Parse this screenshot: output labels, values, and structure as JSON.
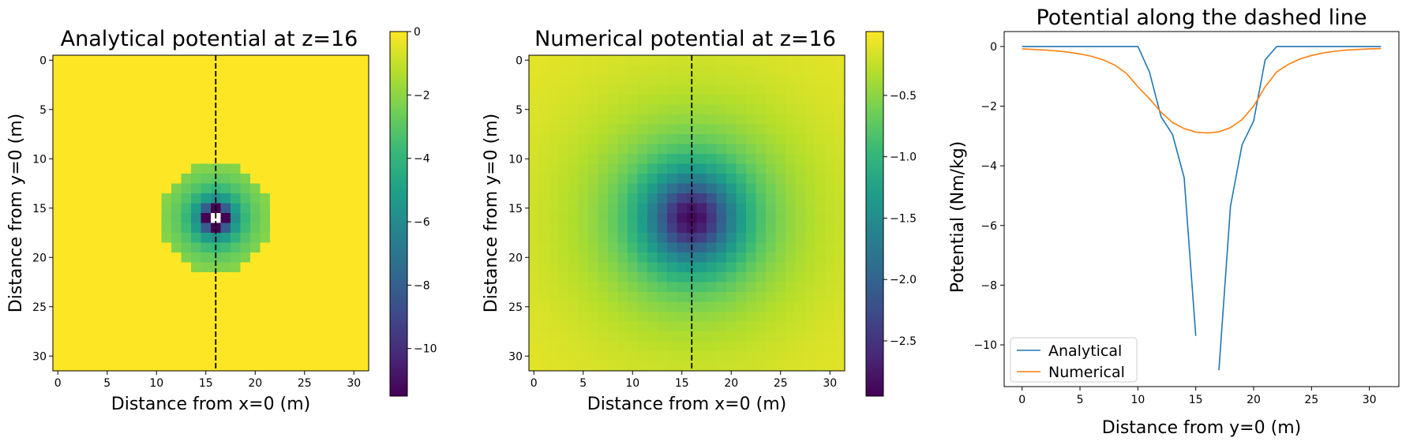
{
  "colors": {
    "analytical": "#1f77b4",
    "numerical": "#ff7f0e",
    "viridis": [
      "#440154",
      "#482878",
      "#3e4989",
      "#31688e",
      "#26828e",
      "#1f9e89",
      "#35b779",
      "#6ece58",
      "#b5de2b",
      "#fde725"
    ],
    "dashed_line": "#000000"
  },
  "chart_data": [
    {
      "type": "heatmap",
      "title": "Analytical potential at z=16",
      "xlabel": "Distance from x=0 (m)",
      "ylabel": "Distance from y=0 (m)",
      "grid_size": 32,
      "x_ticks": [
        "0",
        "5",
        "10",
        "15",
        "20",
        "25",
        "30"
      ],
      "y_ticks": [
        "0",
        "5",
        "10",
        "15",
        "20",
        "25",
        "30"
      ],
      "colorbar": {
        "range": [
          -11.5,
          0
        ],
        "ticks": [
          "0",
          "−2",
          "−4",
          "−6",
          "−8",
          "−10"
        ],
        "tick_values": [
          0,
          -2,
          -4,
          -6,
          -8,
          -10
        ],
        "cmap": "viridis"
      },
      "field": {
        "formula": "-G*M/r",
        "center": [
          16,
          16
        ],
        "scale": 11.5,
        "cutoff_radius": 5.5,
        "singular_cell": [
          16,
          16
        ]
      },
      "dashed_line": {
        "x": 16
      },
      "grid": false
    },
    {
      "type": "heatmap",
      "title": "Numerical potential at z=16",
      "xlabel": "Distance from x=0 (m)",
      "ylabel": "Distance from y=0 (m)",
      "grid_size": 32,
      "x_ticks": [
        "0",
        "5",
        "10",
        "15",
        "20",
        "25",
        "30"
      ],
      "y_ticks": [
        "0",
        "5",
        "10",
        "15",
        "20",
        "25",
        "30"
      ],
      "colorbar": {
        "range": [
          -2.95,
          0.02
        ],
        "ticks": [
          "−0.5",
          "−1.0",
          "−1.5",
          "−2.0",
          "−2.5"
        ],
        "tick_values": [
          -0.5,
          -1.0,
          -1.5,
          -2.0,
          -2.5
        ],
        "cmap": "viridis"
      },
      "field": {
        "formula": "smooth",
        "center": [
          16,
          16
        ],
        "min": -2.9
      },
      "dashed_line": {
        "x": 16
      },
      "grid": false
    },
    {
      "type": "line",
      "title": "Potential along the dashed line",
      "xlabel": "Distance from y=0 (m)",
      "ylabel": "Potential (Nm/kg)",
      "xlim": [
        -1.55,
        32.55
      ],
      "ylim": [
        -11.4,
        0.5
      ],
      "x_ticks": [
        0,
        5,
        10,
        15,
        20,
        25,
        30
      ],
      "x_tick_labels": [
        "0",
        "5",
        "10",
        "15",
        "20",
        "25",
        "30"
      ],
      "y_ticks": [
        0,
        -2,
        -4,
        -6,
        -8,
        -10
      ],
      "y_tick_labels": [
        "0",
        "−2",
        "−4",
        "−6",
        "−8",
        "−10"
      ],
      "legend": "lower-left",
      "grid": false,
      "series": [
        {
          "name": "Analytical",
          "x": [
            0,
            1,
            2,
            3,
            4,
            5,
            6,
            7,
            8,
            9,
            10,
            11,
            12,
            13,
            14,
            15,
            16,
            17,
            18,
            19,
            20,
            21,
            22,
            23,
            24,
            25,
            26,
            27,
            28,
            29,
            30,
            31
          ],
          "y": [
            0,
            0,
            0,
            0,
            0,
            0,
            0,
            0,
            0,
            0,
            0,
            -0.85,
            -2.35,
            -2.95,
            -4.4,
            -9.7,
            null,
            -10.85,
            -5.35,
            -3.3,
            -2.5,
            -0.45,
            0,
            0,
            0,
            0,
            0,
            0,
            0,
            0,
            0,
            0
          ]
        },
        {
          "name": "Numerical",
          "x": [
            0,
            1,
            2,
            3,
            4,
            5,
            6,
            7,
            8,
            9,
            10,
            11,
            12,
            13,
            14,
            15,
            16,
            17,
            18,
            19,
            20,
            21,
            22,
            23,
            24,
            25,
            26,
            27,
            28,
            29,
            30,
            31
          ],
          "y": [
            -0.08,
            -0.1,
            -0.12,
            -0.15,
            -0.19,
            -0.25,
            -0.33,
            -0.45,
            -0.62,
            -0.9,
            -1.35,
            -1.75,
            -2.2,
            -2.55,
            -2.75,
            -2.87,
            -2.9,
            -2.86,
            -2.72,
            -2.45,
            -2.0,
            -1.35,
            -0.85,
            -0.6,
            -0.42,
            -0.3,
            -0.22,
            -0.16,
            -0.12,
            -0.1,
            -0.08,
            -0.07
          ]
        }
      ]
    }
  ]
}
